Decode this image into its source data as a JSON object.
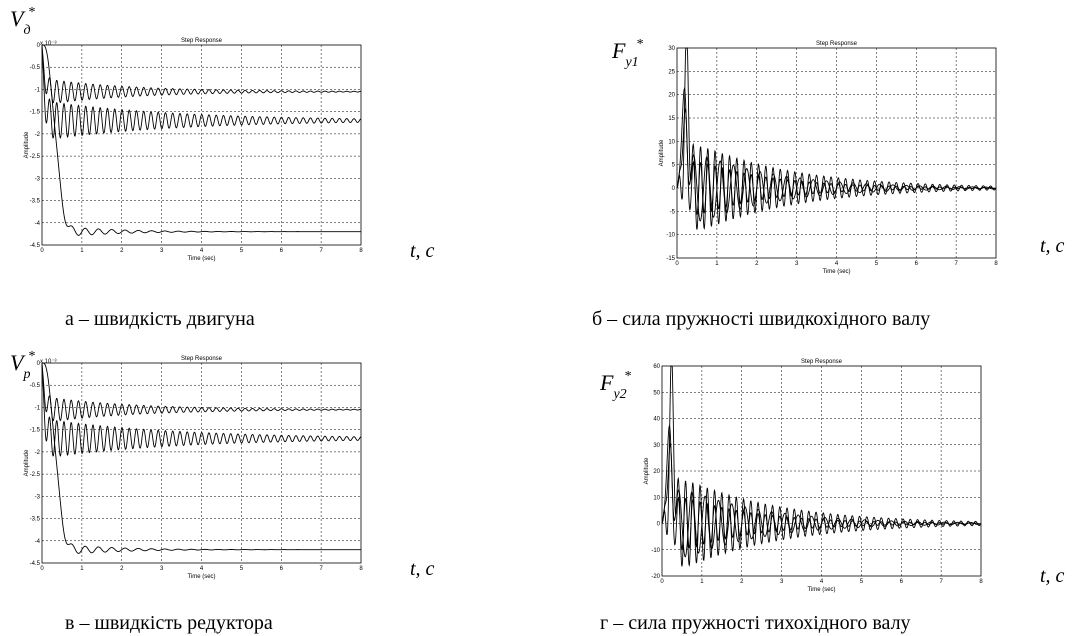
{
  "panels": [
    {
      "id": "a",
      "caption": "а – швидкість двигуна",
      "symbol": {
        "base": "V",
        "sub": "д",
        "sup": "*"
      },
      "time_label": "t, c",
      "multiplier": "x 10⁻³",
      "chart_data": {
        "type": "line",
        "title": "Step Response",
        "xlabel": "Time (sec)",
        "ylabel": "Amplitude",
        "xlim": [
          0,
          8
        ],
        "ylim": [
          -4.5,
          0
        ],
        "x_ticks": [
          0,
          1,
          2,
          3,
          4,
          5,
          6,
          7,
          8
        ],
        "y_ticks": [
          0,
          -0.5,
          -1,
          -1.5,
          -2,
          -2.5,
          -3,
          -3.5,
          -4,
          -4.5
        ],
        "grid": true,
        "series": [
          {
            "final": -1.05,
            "amplitude": 0.3,
            "freq_hz": 5.5,
            "decay": 0.45
          },
          {
            "final": -1.7,
            "amplitude": 0.45,
            "freq_hz": 5.5,
            "decay": 0.3
          },
          {
            "final": -4.2,
            "amplitude": 0.22,
            "freq_hz": 3.0,
            "decay": 0.85
          }
        ]
      }
    },
    {
      "id": "b",
      "caption": "б – сила пружності швидкохідного валу",
      "symbol": {
        "base": "F",
        "sub": "y1",
        "sup": "*"
      },
      "time_label": "t, c",
      "multiplier": "",
      "chart_data": {
        "type": "line",
        "title": "Step Response",
        "xlabel": "Time (sec)",
        "ylabel": "Amplitude",
        "xlim": [
          0,
          8
        ],
        "ylim": [
          -15,
          30
        ],
        "x_ticks": [
          0,
          1,
          2,
          3,
          4,
          5,
          6,
          7,
          8
        ],
        "y_ticks": [
          30,
          25,
          20,
          15,
          10,
          5,
          0,
          -5,
          -10,
          -15
        ],
        "grid": true,
        "series": [
          {
            "peak": 28,
            "peak_t": 0.25,
            "amplitude": 12,
            "freq_hz": 5.5,
            "decay": 0.42
          },
          {
            "peak": 24,
            "peak_t": 0.2,
            "amplitude": 10,
            "freq_hz": 3.0,
            "decay": 0.5
          },
          {
            "peak": 15,
            "peak_t": 0.18,
            "amplitude": 8,
            "freq_hz": 5.5,
            "decay": 0.55
          }
        ]
      }
    },
    {
      "id": "v",
      "caption": "в –  швидкість редуктора",
      "symbol": {
        "base": "V",
        "sub": "p",
        "sup": "*"
      },
      "time_label": "t, c",
      "multiplier": "x 10⁻³",
      "chart_data": {
        "type": "line",
        "title": "Step Response",
        "xlabel": "Time (sec)",
        "ylabel": "Amplitude",
        "xlim": [
          0,
          8
        ],
        "ylim": [
          -4.5,
          0
        ],
        "x_ticks": [
          0,
          1,
          2,
          3,
          4,
          5,
          6,
          7,
          8
        ],
        "y_ticks": [
          0,
          -0.5,
          -1,
          -1.5,
          -2,
          -2.5,
          -3,
          -3.5,
          -4,
          -4.5
        ],
        "grid": true,
        "series": [
          {
            "final": -1.05,
            "amplitude": 0.3,
            "freq_hz": 5.5,
            "decay": 0.45
          },
          {
            "final": -1.7,
            "amplitude": 0.45,
            "freq_hz": 5.5,
            "decay": 0.3
          },
          {
            "final": -4.2,
            "amplitude": 0.22,
            "freq_hz": 3.0,
            "decay": 0.85
          }
        ]
      }
    },
    {
      "id": "g",
      "caption": "г – сила пружності тихохідного валу",
      "symbol": {
        "base": "F",
        "sub": "y2",
        "sup": "*"
      },
      "time_label": "t, c",
      "multiplier": "",
      "chart_data": {
        "type": "line",
        "title": "Step Response",
        "xlabel": "Time (sec)",
        "ylabel": "Amplitude",
        "xlim": [
          0,
          8
        ],
        "ylim": [
          -20,
          60
        ],
        "x_ticks": [
          0,
          1,
          2,
          3,
          4,
          5,
          6,
          7,
          8
        ],
        "y_ticks": [
          60,
          50,
          40,
          30,
          20,
          10,
          0,
          -10,
          -20
        ],
        "grid": true,
        "series": [
          {
            "peak": 53,
            "peak_t": 0.25,
            "amplitude": 22,
            "freq_hz": 5.5,
            "decay": 0.42
          },
          {
            "peak": 42,
            "peak_t": 0.2,
            "amplitude": 18,
            "freq_hz": 3.0,
            "decay": 0.5
          },
          {
            "peak": 27,
            "peak_t": 0.18,
            "amplitude": 14,
            "freq_hz": 5.5,
            "decay": 0.55
          }
        ]
      }
    }
  ]
}
